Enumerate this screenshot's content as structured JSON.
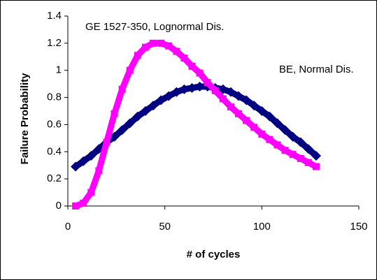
{
  "chart_data": {
    "type": "line",
    "x_label": "# of cycles",
    "y_label": "Failure Probability",
    "x": [
      4,
      8,
      12,
      16,
      20,
      24,
      28,
      32,
      36,
      40,
      44,
      48,
      52,
      56,
      60,
      64,
      68,
      72,
      76,
      80,
      84,
      88,
      92,
      96,
      100,
      104,
      108,
      112,
      116,
      120,
      124,
      128
    ],
    "series": [
      {
        "name": "BE, Normal Dis.",
        "color": "#000080",
        "marker": "diamond",
        "values": [
          0.29,
          0.33,
          0.37,
          0.42,
          0.47,
          0.51,
          0.56,
          0.61,
          0.66,
          0.7,
          0.74,
          0.78,
          0.81,
          0.84,
          0.86,
          0.87,
          0.88,
          0.88,
          0.87,
          0.86,
          0.84,
          0.81,
          0.78,
          0.74,
          0.7,
          0.66,
          0.61,
          0.56,
          0.51,
          0.47,
          0.42,
          0.37
        ]
      },
      {
        "name": "GE 1527-350, Lognormal Dis.",
        "color": "#ff00ff",
        "marker": "square",
        "values": [
          0.0,
          0.02,
          0.1,
          0.26,
          0.47,
          0.68,
          0.86,
          1.0,
          1.11,
          1.17,
          1.2,
          1.2,
          1.18,
          1.14,
          1.09,
          1.03,
          0.98,
          0.91,
          0.85,
          0.79,
          0.73,
          0.68,
          0.63,
          0.58,
          0.53,
          0.49,
          0.45,
          0.41,
          0.38,
          0.35,
          0.32,
          0.29
        ]
      }
    ],
    "xlim": [
      0,
      150
    ],
    "xticks": [
      0,
      50,
      100,
      150
    ],
    "ylim": [
      0,
      1.4
    ],
    "yticks": [
      0,
      0.2,
      0.4,
      0.6,
      0.8,
      1,
      1.2,
      1.4
    ],
    "grid": false
  }
}
